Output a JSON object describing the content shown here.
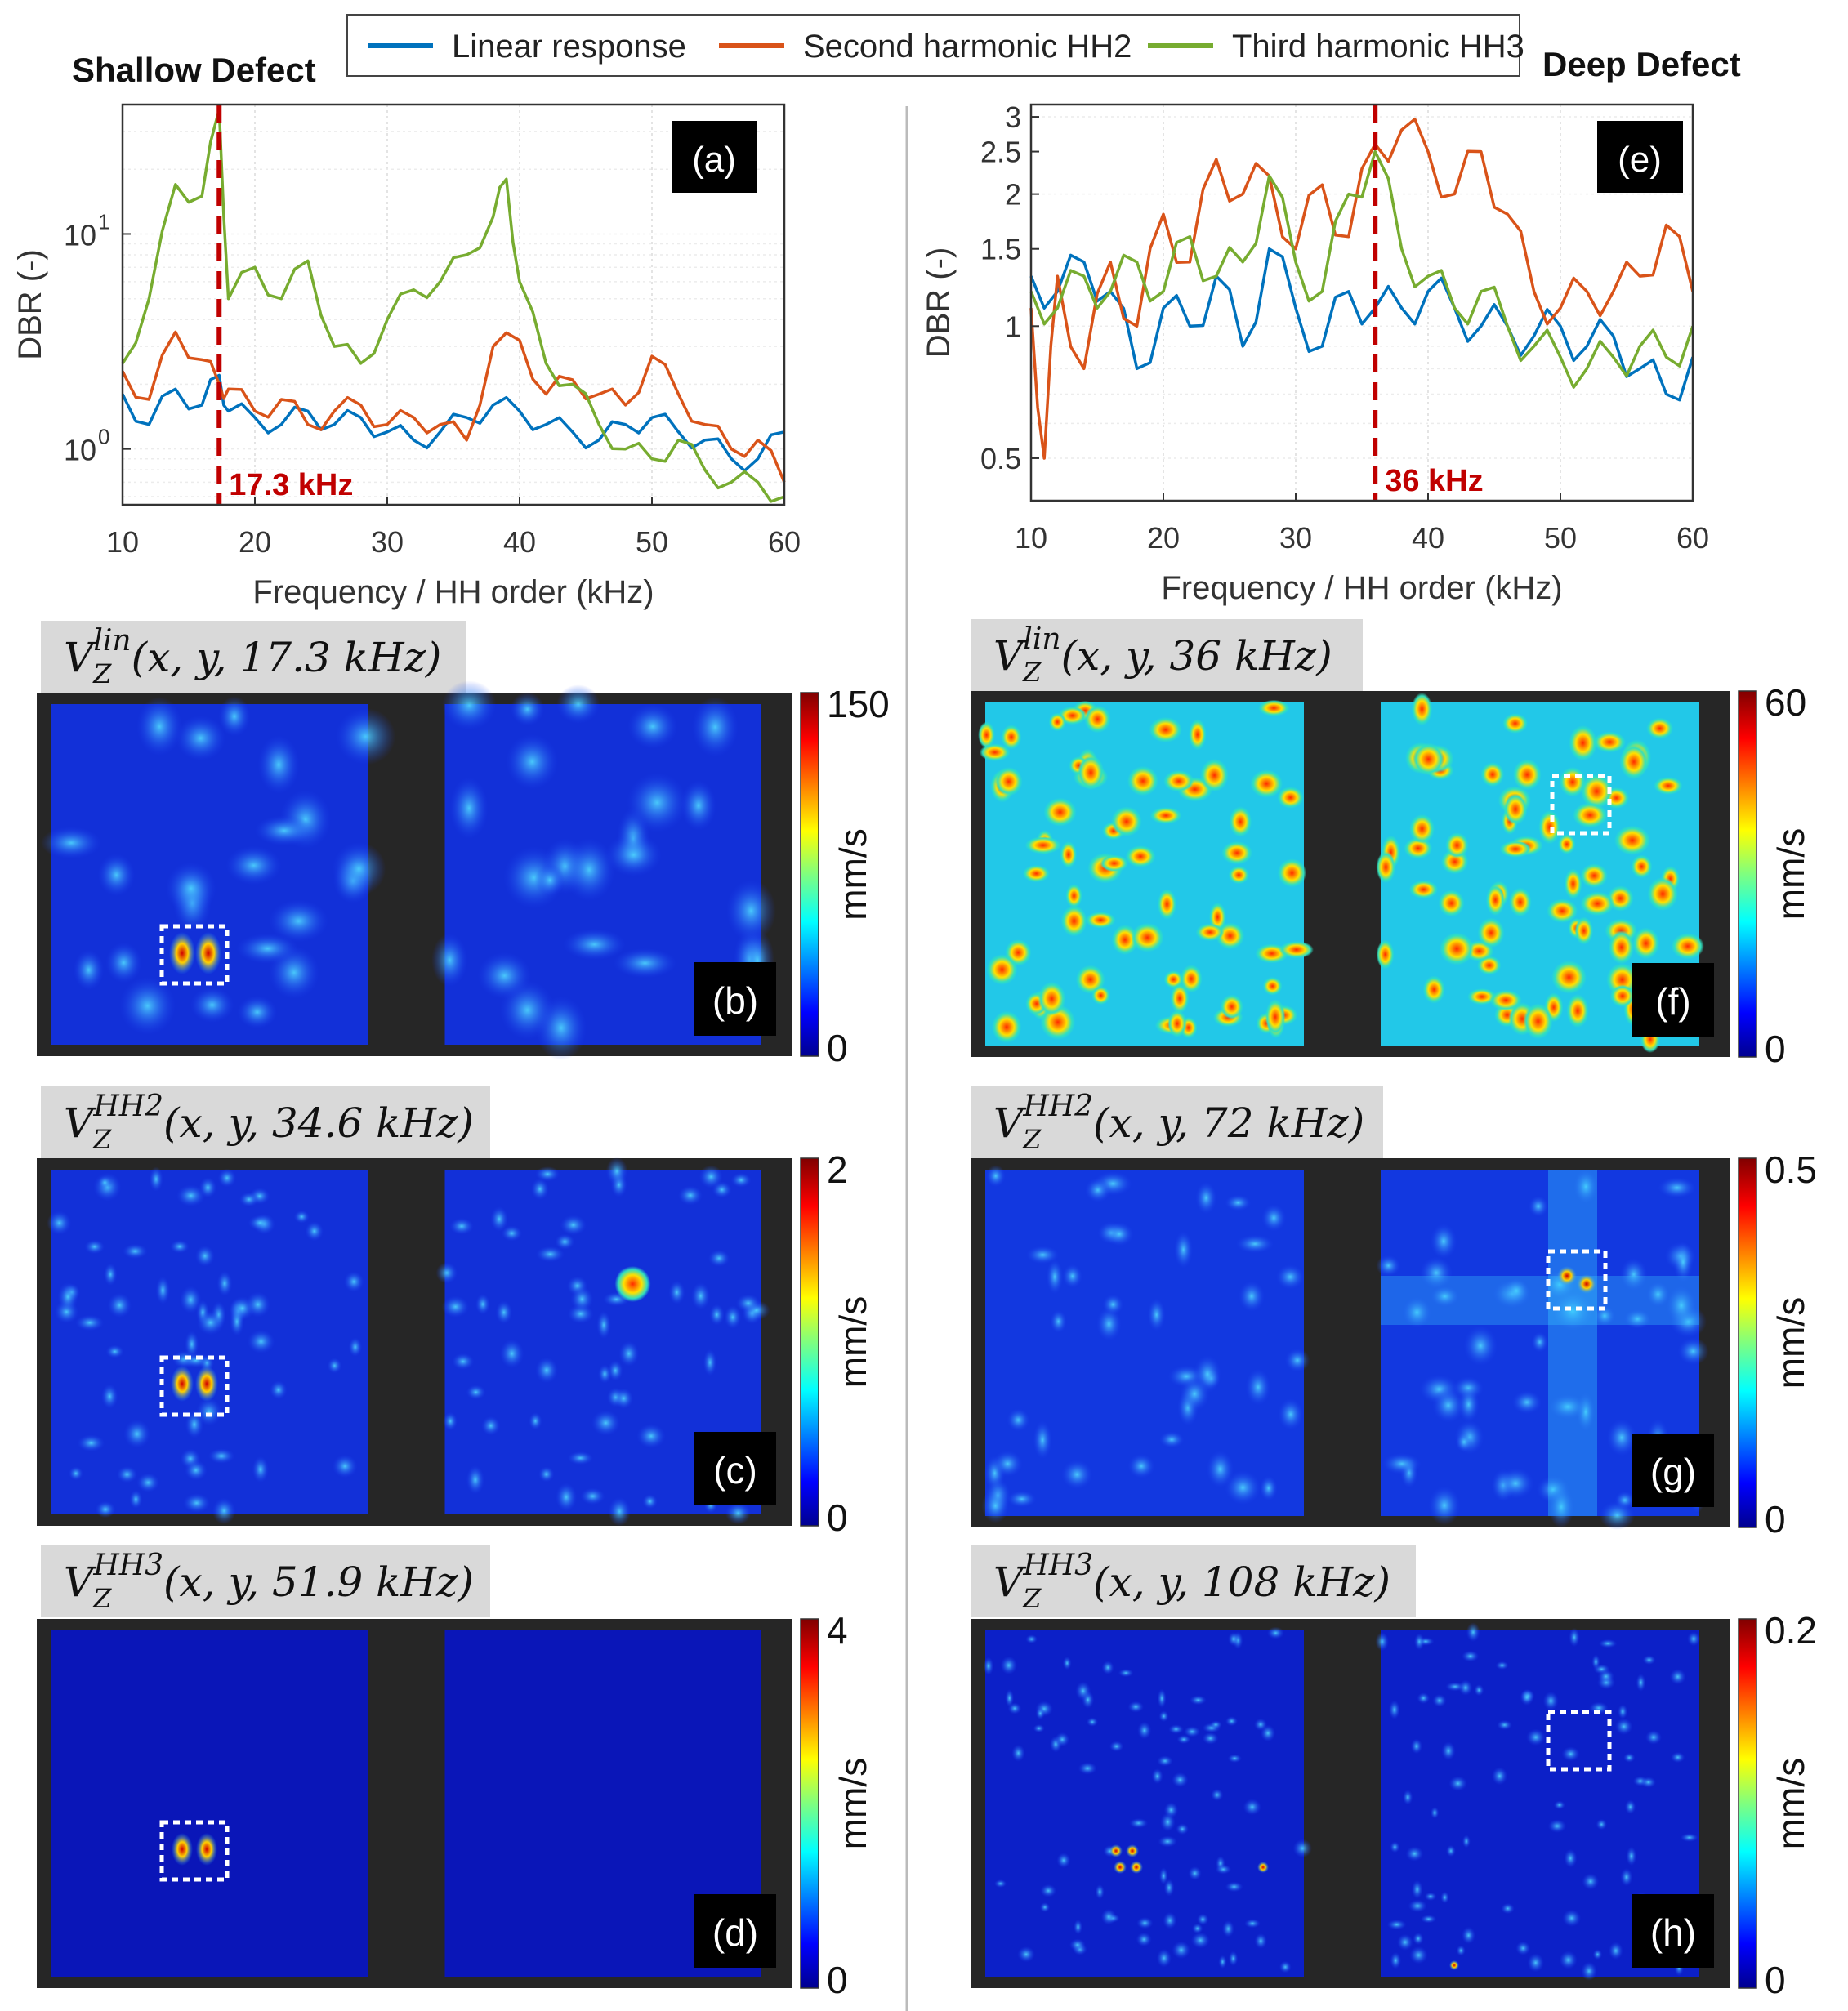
{
  "legend": {
    "items": [
      {
        "label": "Linear response",
        "color": "#0072BD"
      },
      {
        "label": "Second harmonic HH2",
        "color": "#D95319"
      },
      {
        "label": "Third harmonic HH3",
        "color": "#77AC30"
      }
    ]
  },
  "titles": {
    "left": "Shallow Defect",
    "right": "Deep Defect"
  },
  "chart_data": [
    {
      "type": "line",
      "panel": "(a)",
      "title": "Shallow Defect",
      "xlabel": "Frequency / HH order (kHz)",
      "ylabel": "DBR (-)",
      "xlim": [
        10,
        60
      ],
      "ylim": [
        0.55,
        40
      ],
      "yscale": "log",
      "xticks": [
        "10",
        "20",
        "30",
        "40",
        "50",
        "60"
      ],
      "yticks": [
        {
          "value": 1,
          "label": "10",
          "exp": "0"
        },
        {
          "value": 10,
          "label": "10",
          "exp": "1"
        }
      ],
      "marker": {
        "x": 17.3,
        "label": "17.3 kHz",
        "color": "#C00000"
      },
      "series": [
        {
          "name": "Linear response",
          "color": "#0072BD",
          "x": [
            10,
            12,
            14,
            16,
            17.3,
            18,
            20,
            22,
            24,
            26,
            28,
            30,
            32,
            34,
            36,
            38,
            40,
            42,
            44,
            46,
            48,
            50,
            52,
            54,
            56,
            58,
            60
          ],
          "values": [
            1.8,
            1.3,
            1.9,
            1.6,
            2.2,
            1.5,
            1.4,
            1.3,
            1.5,
            1.3,
            1.4,
            1.2,
            1.1,
            1.2,
            1.4,
            1.6,
            1.5,
            1.3,
            1.2,
            1.1,
            1.3,
            1.4,
            1.2,
            1.1,
            0.9,
            0.9,
            1.2
          ]
        },
        {
          "name": "Second harmonic HH2",
          "color": "#D95319",
          "x": [
            10,
            12,
            14,
            16,
            17.3,
            18,
            20,
            22,
            24,
            26,
            28,
            30,
            32,
            34,
            36,
            38,
            40,
            42,
            44,
            46,
            48,
            50,
            52,
            54,
            56,
            58,
            60
          ],
          "values": [
            2.3,
            1.7,
            3.5,
            2.6,
            2.0,
            1.9,
            1.5,
            1.7,
            1.3,
            1.5,
            1.6,
            1.3,
            1.4,
            1.3,
            1.1,
            3.0,
            3.2,
            1.8,
            2.1,
            1.8,
            1.6,
            2.7,
            1.8,
            1.3,
            1.0,
            1.1,
            0.7
          ]
        },
        {
          "name": "Third harmonic HH3",
          "color": "#77AC30",
          "x": [
            10,
            12,
            14,
            16,
            17.3,
            18,
            20,
            22,
            24,
            26,
            28,
            30,
            32,
            34,
            36,
            38,
            39,
            40,
            42,
            44,
            46,
            48,
            50,
            52,
            54,
            56,
            58,
            60
          ],
          "values": [
            2.5,
            5.0,
            17.0,
            15.0,
            38.0,
            5.0,
            7.0,
            5.0,
            7.5,
            3.0,
            2.5,
            4.0,
            5.5,
            6.0,
            8.0,
            12.0,
            18.0,
            6.0,
            2.5,
            2.0,
            1.3,
            1.0,
            0.9,
            1.1,
            0.8,
            0.7,
            0.7,
            0.6
          ]
        }
      ]
    },
    {
      "type": "line",
      "panel": "(e)",
      "title": "Deep Defect",
      "xlabel": "Frequency / HH order (kHz)",
      "ylabel": "DBR (-)",
      "xlim": [
        10,
        60
      ],
      "ylim": [
        0.4,
        3.2
      ],
      "yscale": "log",
      "xticks": [
        "10",
        "20",
        "30",
        "40",
        "50",
        "60"
      ],
      "yticks": [
        {
          "value": 0.5,
          "label": "0.5"
        },
        {
          "value": 1,
          "label": "1"
        },
        {
          "value": 1.5,
          "label": "1.5"
        },
        {
          "value": 2,
          "label": "2"
        },
        {
          "value": 2.5,
          "label": "2.5"
        },
        {
          "value": 3,
          "label": "3"
        }
      ],
      "marker": {
        "x": 36,
        "label": "36 kHz",
        "color": "#C00000"
      },
      "series": [
        {
          "name": "Linear response",
          "color": "#0072BD",
          "x": [
            10,
            12,
            14,
            16,
            18,
            20,
            22,
            24,
            26,
            28,
            30,
            32,
            34,
            36,
            38,
            40,
            42,
            44,
            46,
            48,
            50,
            52,
            54,
            56,
            58,
            60
          ],
          "values": [
            1.3,
            1.2,
            1.4,
            1.2,
            0.8,
            1.1,
            1.0,
            1.3,
            0.9,
            1.5,
            1.1,
            0.9,
            1.2,
            1.1,
            1.1,
            1.2,
            1.1,
            1.0,
            1.0,
            0.95,
            1.0,
            0.9,
            0.95,
            0.8,
            0.7,
            0.85
          ]
        },
        {
          "name": "Second harmonic HH2",
          "color": "#D95319",
          "x": [
            10,
            11,
            12,
            14,
            16,
            18,
            20,
            22,
            24,
            26,
            28,
            30,
            32,
            34,
            36,
            38,
            40,
            42,
            44,
            46,
            48,
            50,
            52,
            54,
            56,
            58,
            60
          ],
          "values": [
            1.1,
            0.5,
            1.3,
            0.8,
            1.4,
            1.0,
            1.8,
            1.4,
            2.4,
            2.0,
            2.2,
            1.5,
            2.1,
            1.6,
            2.6,
            2.8,
            2.5,
            2.0,
            2.5,
            1.8,
            1.2,
            1.1,
            1.2,
            1.2,
            1.3,
            1.7,
            1.2
          ]
        },
        {
          "name": "Third harmonic HH3",
          "color": "#77AC30",
          "x": [
            10,
            12,
            14,
            16,
            18,
            20,
            22,
            24,
            26,
            28,
            30,
            32,
            34,
            36,
            38,
            40,
            42,
            44,
            46,
            48,
            50,
            52,
            54,
            56,
            58,
            60
          ],
          "values": [
            1.2,
            1.1,
            1.3,
            1.2,
            1.4,
            1.2,
            1.6,
            1.3,
            1.4,
            2.2,
            1.4,
            1.2,
            2.0,
            2.5,
            1.5,
            1.3,
            1.1,
            1.2,
            1.0,
            0.9,
            0.85,
            0.8,
            0.85,
            0.9,
            0.85,
            1.0
          ]
        }
      ]
    },
    {
      "type": "heatmap",
      "panel": "(b)",
      "title_main": "V",
      "title_sub": "Z",
      "title_sup": "lin",
      "title_args": "(x, y, 17.3 kHz)",
      "colorbar": {
        "max": "150",
        "min": "0",
        "unit": "mm/s"
      }
    },
    {
      "type": "heatmap",
      "panel": "(c)",
      "title_main": "V",
      "title_sub": "Z",
      "title_sup": "HH2",
      "title_args": "(x, y, 34.6 kHz)",
      "colorbar": {
        "max": "2",
        "min": "0",
        "unit": "mm/s"
      }
    },
    {
      "type": "heatmap",
      "panel": "(d)",
      "title_main": "V",
      "title_sub": "Z",
      "title_sup": "HH3",
      "title_args": "(x, y, 51.9 kHz)",
      "colorbar": {
        "max": "4",
        "min": "0",
        "unit": "mm/s"
      }
    },
    {
      "type": "heatmap",
      "panel": "(f)",
      "title_main": "V",
      "title_sub": "Z",
      "title_sup": "lin",
      "title_args": "(x, y, 36 kHz)",
      "colorbar": {
        "max": "60",
        "min": "0",
        "unit": "mm/s"
      }
    },
    {
      "type": "heatmap",
      "panel": "(g)",
      "title_main": "V",
      "title_sub": "Z",
      "title_sup": "HH2",
      "title_args": "(x, y, 72 kHz)",
      "colorbar": {
        "max": "0.5",
        "min": "0",
        "unit": "mm/s"
      }
    },
    {
      "type": "heatmap",
      "panel": "(h)",
      "title_main": "V",
      "title_sub": "Z",
      "title_sup": "HH3",
      "title_args": "(x, y, 108 kHz)",
      "colorbar": {
        "max": "0.2",
        "min": "0",
        "unit": "mm/s"
      }
    }
  ]
}
